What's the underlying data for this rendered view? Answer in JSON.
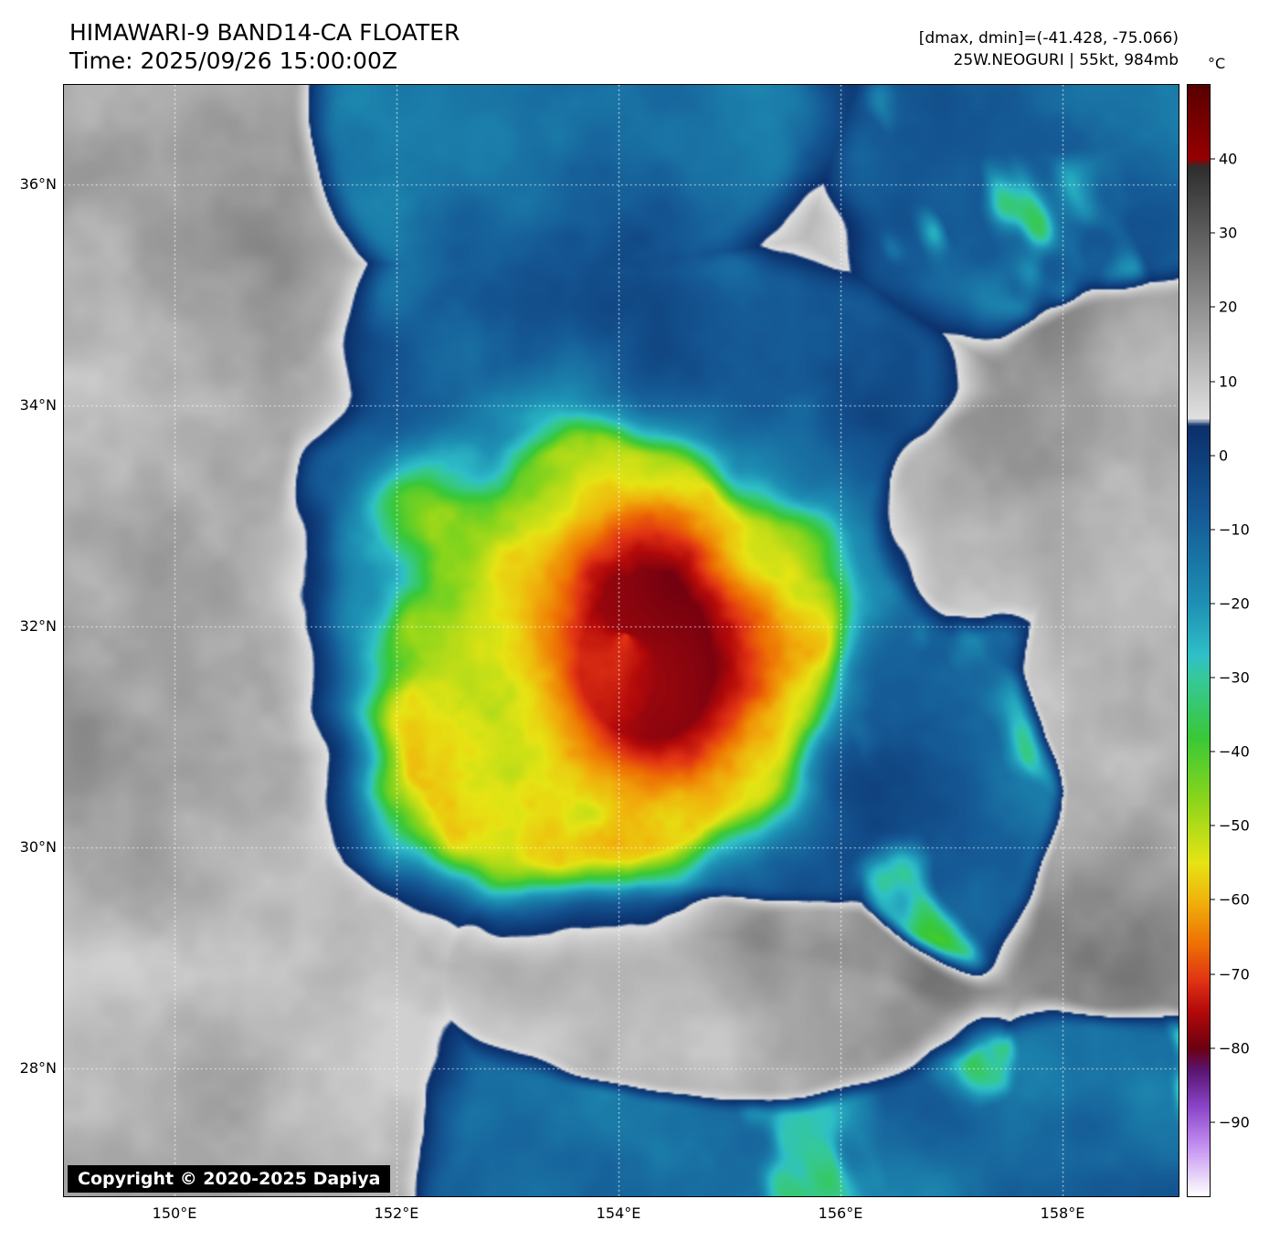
{
  "header": {
    "title": "HIMAWARI-9 BAND14-CA FLOATER",
    "time": "Time: 2025/09/26 15:00:00Z",
    "dmax_dmin": "[dmax, dmin]=(-41.428, -75.066)",
    "storm": "25W.NEOGURI | 55kt, 984mb"
  },
  "storm": {
    "designation": "25W",
    "name": "NEOGURI",
    "intensity": "55kt",
    "pressure": "984mb",
    "dmax": -41.428,
    "dmin": -75.066
  },
  "map": {
    "copyright": "Copyright © 2020-2025 Dapiya",
    "lat_ticks": [
      {
        "label": "36°N",
        "lat": 36
      },
      {
        "label": "34°N",
        "lat": 34
      },
      {
        "label": "32°N",
        "lat": 32
      },
      {
        "label": "30°N",
        "lat": 30
      },
      {
        "label": "28°N",
        "lat": 28
      }
    ],
    "lon_ticks": [
      {
        "label": "150°E",
        "lon": 150
      },
      {
        "label": "152°E",
        "lon": 152
      },
      {
        "label": "154°E",
        "lon": 154
      },
      {
        "label": "156°E",
        "lon": 156
      },
      {
        "label": "158°E",
        "lon": 158
      }
    ],
    "lon_range": [
      149.0,
      159.05
    ],
    "lat_range": [
      26.84,
      36.9
    ]
  },
  "colorbar": {
    "unit": "°C",
    "vmax": 50,
    "vmin": -100,
    "ticks": [
      {
        "label": "40",
        "value": 40
      },
      {
        "label": "30",
        "value": 30
      },
      {
        "label": "20",
        "value": 20
      },
      {
        "label": "10",
        "value": 10
      },
      {
        "label": "0",
        "value": 0
      },
      {
        "label": "−10",
        "value": -10
      },
      {
        "label": "−20",
        "value": -20
      },
      {
        "label": "−30",
        "value": -30
      },
      {
        "label": "−40",
        "value": -40
      },
      {
        "label": "−50",
        "value": -50
      },
      {
        "label": "−60",
        "value": -60
      },
      {
        "label": "−70",
        "value": -70
      },
      {
        "label": "−80",
        "value": -80
      },
      {
        "label": "−90",
        "value": -90
      }
    ],
    "stops": [
      [
        50,
        "#5a0000"
      ],
      [
        40,
        "#960000"
      ],
      [
        39,
        "#2e2e2e"
      ],
      [
        5,
        "#e0e0e0"
      ],
      [
        4,
        "#0b2f6b"
      ],
      [
        -8,
        "#155a96"
      ],
      [
        -20,
        "#1e90b4"
      ],
      [
        -27,
        "#2fc0c8"
      ],
      [
        -30,
        "#35c89b"
      ],
      [
        -38,
        "#38c838"
      ],
      [
        -46,
        "#86d41c"
      ],
      [
        -55,
        "#e6e414"
      ],
      [
        -60,
        "#f0b40c"
      ],
      [
        -66,
        "#ee7004"
      ],
      [
        -71,
        "#e03214"
      ],
      [
        -75,
        "#b40a0a"
      ],
      [
        -80,
        "#6e0010"
      ],
      [
        -83,
        "#5a1470"
      ],
      [
        -88,
        "#8a46c8"
      ],
      [
        -93,
        "#c08cf0"
      ],
      [
        -100,
        "#ffffff"
      ]
    ]
  }
}
